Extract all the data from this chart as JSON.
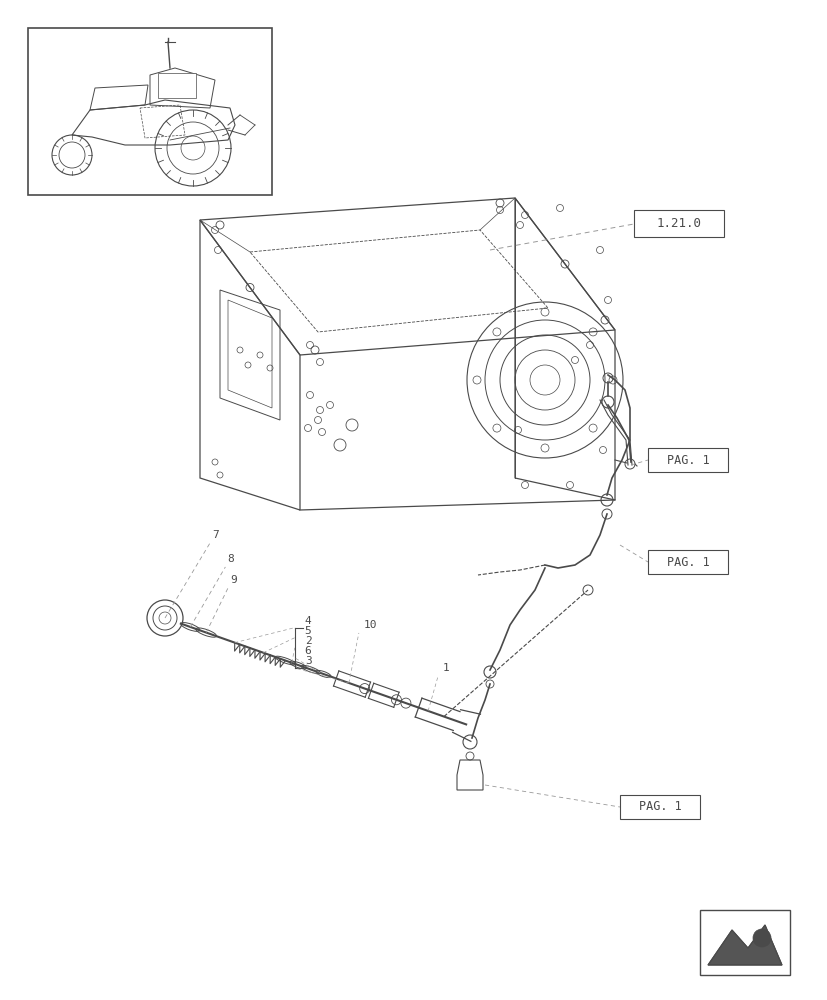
{
  "bg_color": "#ffffff",
  "line_color": "#4a4a4a",
  "light_line_color": "#999999",
  "figure_width": 8.28,
  "figure_height": 10.0,
  "dpi": 100,
  "label_121": "1.21.0",
  "label_pag1": "PAG. 1",
  "label_pag2": "PAG. 1",
  "label_pag3": "PAG. 1"
}
